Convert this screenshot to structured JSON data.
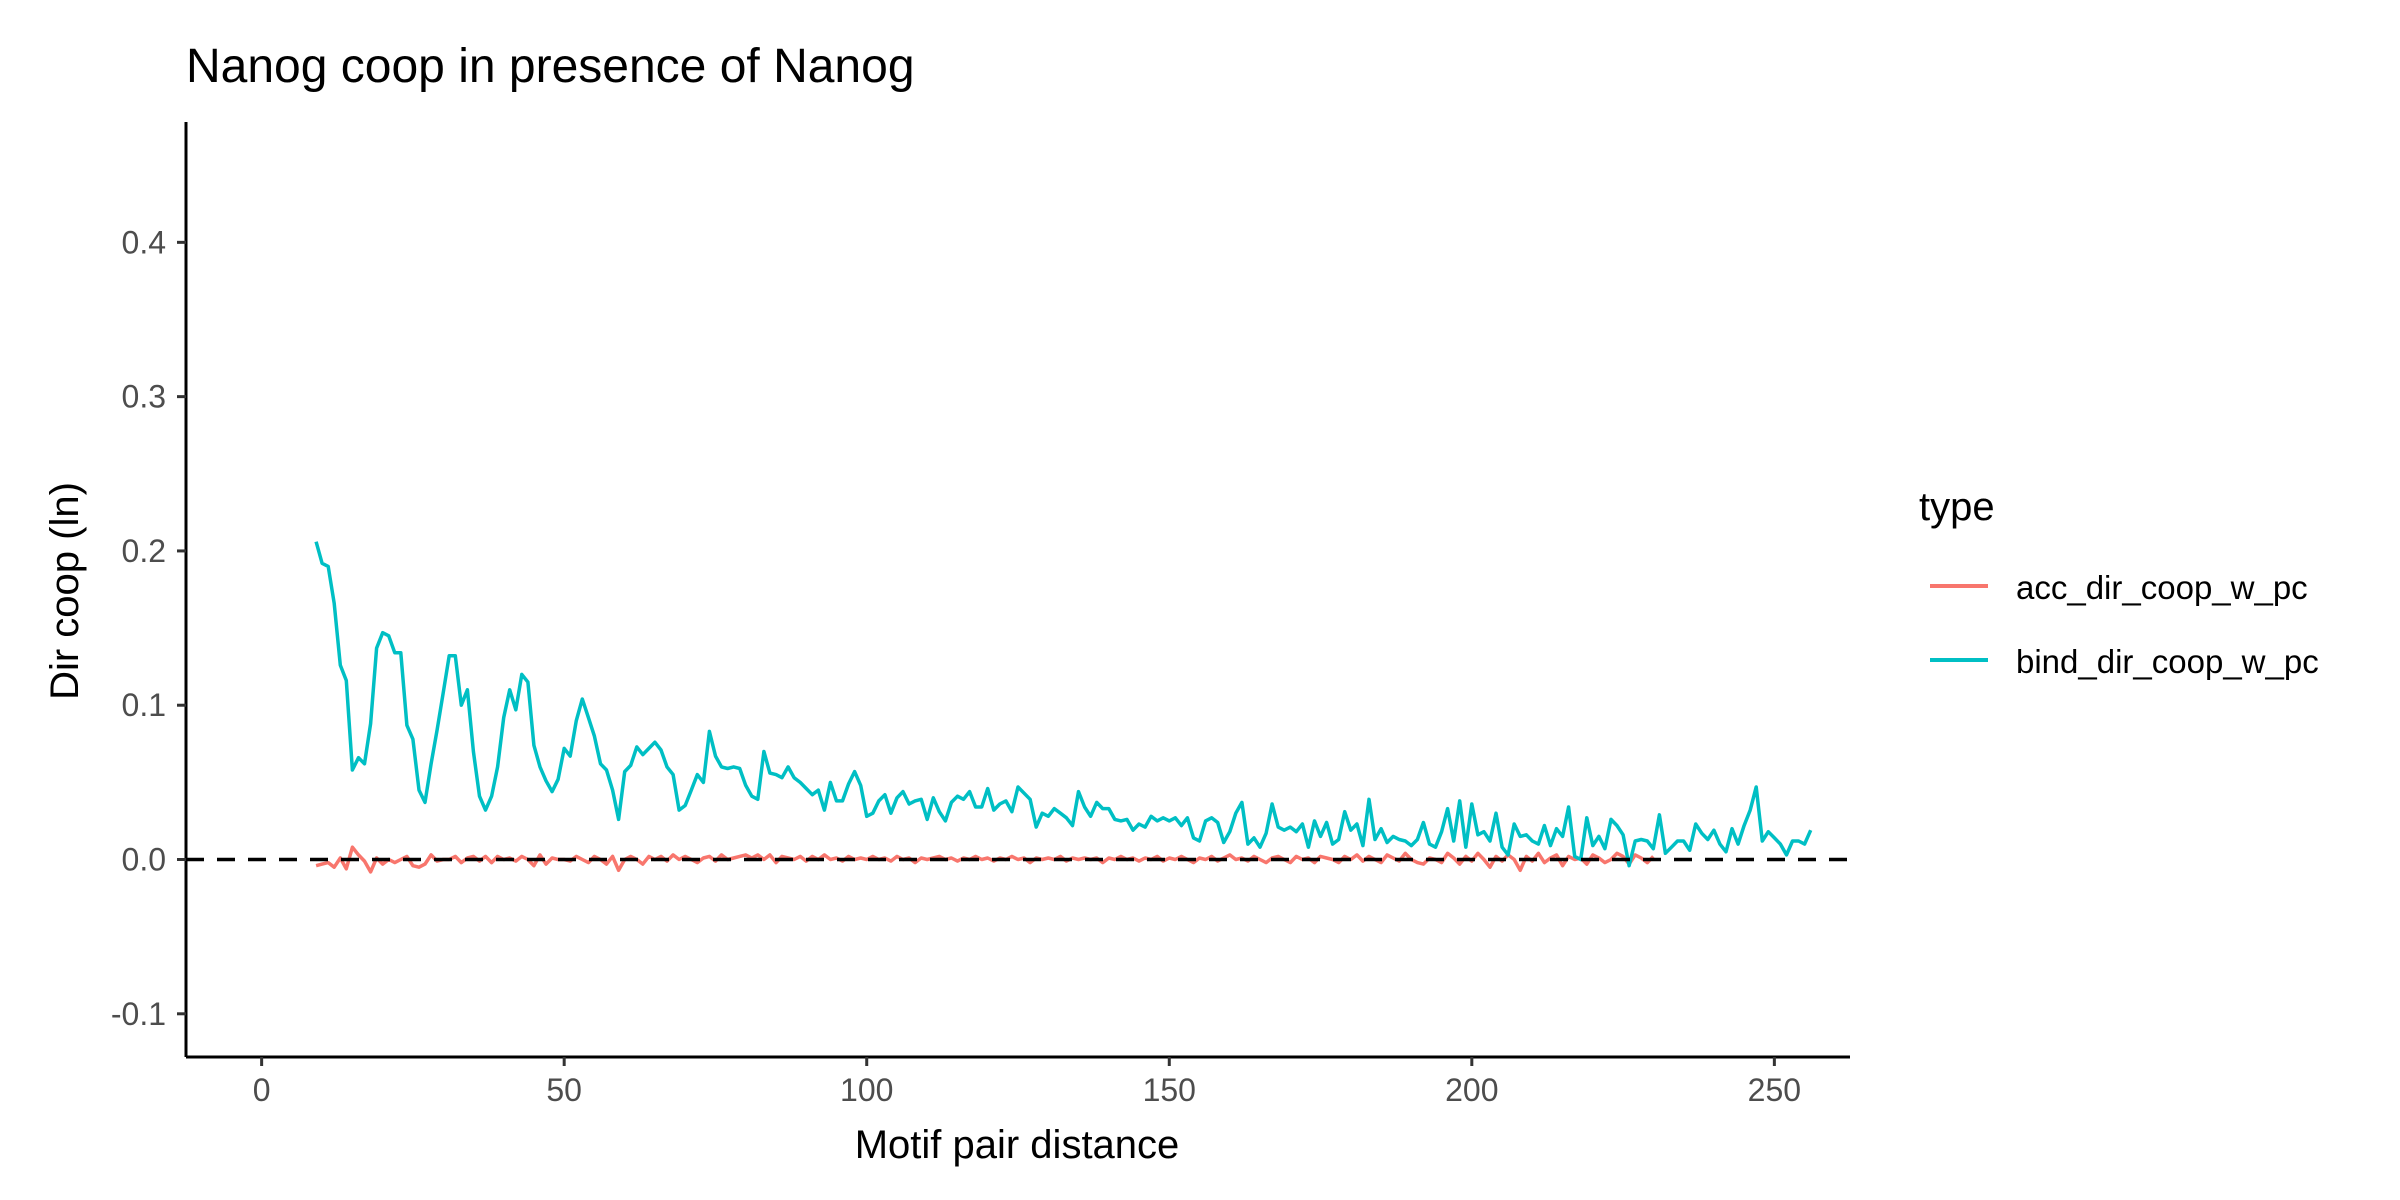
{
  "chart_data": {
    "type": "line",
    "title": "Nanog coop in presence of Nanog",
    "xlabel": "Motif pair distance",
    "ylabel": "Dir coop (ln)",
    "xlim": [
      -12.5,
      262.5
    ],
    "ylim": [
      -0.128,
      0.478
    ],
    "xticks": [
      0,
      50,
      100,
      150,
      200,
      250
    ],
    "yticks": [
      -0.1,
      0.0,
      0.1,
      0.2,
      0.3,
      0.4
    ],
    "ytick_labels": [
      "-0.1",
      "0.0",
      "0.1",
      "0.2",
      "0.3",
      "0.4"
    ],
    "grid": false,
    "reference_line": {
      "y": 0,
      "style": "dashed",
      "color": "#000000"
    },
    "legend": {
      "title": "type",
      "placement": "right",
      "entries": [
        "acc_dir_coop_w_pc",
        "bind_dir_coop_w_pc"
      ]
    },
    "series": [
      {
        "name": "acc_dir_coop_w_pc",
        "color": "#F8766D",
        "x_start": 9,
        "x_step": 1,
        "values": [
          -0.004,
          -0.003,
          -0.002,
          -0.005,
          0.001,
          -0.006,
          0.008,
          0.003,
          -0.001,
          -0.008,
          0.001,
          -0.003,
          0.0,
          -0.002,
          0.0,
          0.002,
          -0.004,
          -0.005,
          -0.003,
          0.003,
          -0.001,
          0.0,
          0.0,
          0.002,
          -0.002,
          0.001,
          0.002,
          -0.001,
          0.002,
          -0.002,
          0.002,
          0.0,
          0.001,
          -0.001,
          0.002,
          0.0,
          -0.004,
          0.003,
          -0.003,
          0.001,
          0.0,
          0.0,
          -0.001,
          0.002,
          0.0,
          -0.002,
          0.002,
          0.0,
          -0.003,
          0.002,
          -0.007,
          0.0,
          0.002,
          0.0,
          -0.003,
          0.002,
          0.0,
          0.002,
          -0.001,
          0.003,
          0.0,
          0.002,
          0.0,
          -0.002,
          0.001,
          0.002,
          -0.001,
          0.003,
          0.0,
          0.001,
          0.002,
          0.003,
          0.001,
          0.003,
          0.0,
          0.003,
          -0.002,
          0.002,
          0.001,
          0.0,
          0.002,
          -0.001,
          0.002,
          0.0,
          0.003,
          0.0,
          0.001,
          -0.001,
          0.002,
          0.0,
          0.001,
          0.0,
          0.002,
          0.0,
          0.001,
          -0.001,
          0.002,
          0.0,
          0.001,
          -0.002,
          0.001,
          0.0,
          0.001,
          0.002,
          0.0,
          0.001,
          -0.001,
          0.001,
          0.0,
          0.002,
          0.0,
          0.001,
          -0.001,
          0.001,
          0.0,
          0.002,
          0.0,
          0.001,
          -0.002,
          0.001,
          0.0,
          0.001,
          0.0,
          0.002,
          -0.001,
          0.001,
          0.0,
          0.001,
          0.0,
          0.001,
          -0.002,
          0.001,
          0.0,
          0.002,
          0.0,
          0.001,
          -0.001,
          0.001,
          0.0,
          0.002,
          -0.001,
          0.001,
          0.0,
          0.002,
          0.0,
          -0.002,
          0.001,
          0.0,
          0.002,
          -0.001,
          0.001,
          0.003,
          0.0,
          0.001,
          -0.001,
          0.002,
          0.0,
          -0.002,
          0.001,
          0.002,
          0.0,
          -0.002,
          0.002,
          0.0,
          0.001,
          -0.002,
          0.002,
          0.001,
          0.0,
          -0.002,
          0.002,
          0.0,
          0.003,
          -0.001,
          0.002,
          0.0,
          -0.002,
          0.003,
          0.001,
          -0.001,
          0.004,
          0.0,
          -0.002,
          -0.003,
          0.001,
          0.0,
          -0.002,
          0.004,
          0.001,
          -0.003,
          0.002,
          -0.001,
          0.004,
          0.0,
          -0.005,
          0.002,
          -0.001,
          0.003,
          0.0,
          -0.007,
          0.002,
          -0.001,
          0.004,
          -0.002,
          0.001,
          0.003,
          -0.004,
          0.002,
          0.0,
          0.001,
          -0.003,
          0.003,
          0.001,
          -0.002,
          0.0,
          0.004,
          0.002,
          -0.003,
          0.003,
          0.001,
          -0.002,
          0.002
        ]
      },
      {
        "name": "bind_dir_coop_w_pc",
        "color": "#00BFC4",
        "x_start": 9,
        "x_step": 1,
        "values": [
          0.206,
          0.192,
          0.19,
          0.166,
          0.126,
          0.116,
          0.058,
          0.066,
          0.062,
          0.088,
          0.137,
          0.147,
          0.145,
          0.134,
          0.134,
          0.087,
          0.078,
          0.045,
          0.037,
          0.062,
          0.084,
          0.108,
          0.132,
          0.132,
          0.1,
          0.11,
          0.07,
          0.041,
          0.032,
          0.041,
          0.06,
          0.092,
          0.11,
          0.097,
          0.12,
          0.115,
          0.074,
          0.06,
          0.051,
          0.044,
          0.052,
          0.072,
          0.067,
          0.09,
          0.104,
          0.092,
          0.08,
          0.062,
          0.058,
          0.045,
          0.026,
          0.057,
          0.061,
          0.073,
          0.068,
          0.072,
          0.076,
          0.071,
          0.06,
          0.055,
          0.032,
          0.035,
          0.045,
          0.055,
          0.05,
          0.083,
          0.067,
          0.06,
          0.059,
          0.06,
          0.059,
          0.048,
          0.041,
          0.039,
          0.07,
          0.056,
          0.055,
          0.053,
          0.06,
          0.053,
          0.05,
          0.046,
          0.042,
          0.045,
          0.032,
          0.05,
          0.038,
          0.038,
          0.049,
          0.057,
          0.048,
          0.028,
          0.03,
          0.038,
          0.042,
          0.03,
          0.04,
          0.044,
          0.036,
          0.038,
          0.039,
          0.026,
          0.04,
          0.031,
          0.025,
          0.037,
          0.041,
          0.039,
          0.044,
          0.034,
          0.034,
          0.046,
          0.032,
          0.036,
          0.038,
          0.031,
          0.047,
          0.043,
          0.039,
          0.021,
          0.03,
          0.028,
          0.033,
          0.03,
          0.027,
          0.022,
          0.044,
          0.034,
          0.028,
          0.037,
          0.033,
          0.033,
          0.026,
          0.025,
          0.026,
          0.019,
          0.023,
          0.021,
          0.028,
          0.025,
          0.027,
          0.025,
          0.027,
          0.022,
          0.027,
          0.014,
          0.012,
          0.025,
          0.027,
          0.024,
          0.011,
          0.018,
          0.03,
          0.037,
          0.01,
          0.014,
          0.008,
          0.017,
          0.036,
          0.021,
          0.019,
          0.021,
          0.018,
          0.023,
          0.008,
          0.025,
          0.015,
          0.024,
          0.01,
          0.013,
          0.031,
          0.019,
          0.023,
          0.009,
          0.039,
          0.013,
          0.02,
          0.011,
          0.015,
          0.013,
          0.012,
          0.009,
          0.013,
          0.024,
          0.01,
          0.008,
          0.018,
          0.033,
          0.012,
          0.038,
          0.008,
          0.036,
          0.016,
          0.018,
          0.012,
          0.03,
          0.008,
          0.003,
          0.023,
          0.015,
          0.016,
          0.012,
          0.01,
          0.022,
          0.009,
          0.02,
          0.015,
          0.034,
          0.002,
          0.0,
          0.027,
          0.009,
          0.015,
          0.007,
          0.026,
          0.022,
          0.016,
          -0.004,
          0.012,
          0.013,
          0.012,
          0.007,
          0.029,
          0.004,
          0.008,
          0.012,
          0.012,
          0.006,
          0.023,
          0.017,
          0.013,
          0.019,
          0.01,
          0.005,
          0.02,
          0.01,
          0.022,
          0.032,
          0.047,
          0.012,
          0.018,
          0.014,
          0.01,
          0.003,
          0.012,
          0.012,
          0.01,
          0.019
        ]
      }
    ]
  }
}
